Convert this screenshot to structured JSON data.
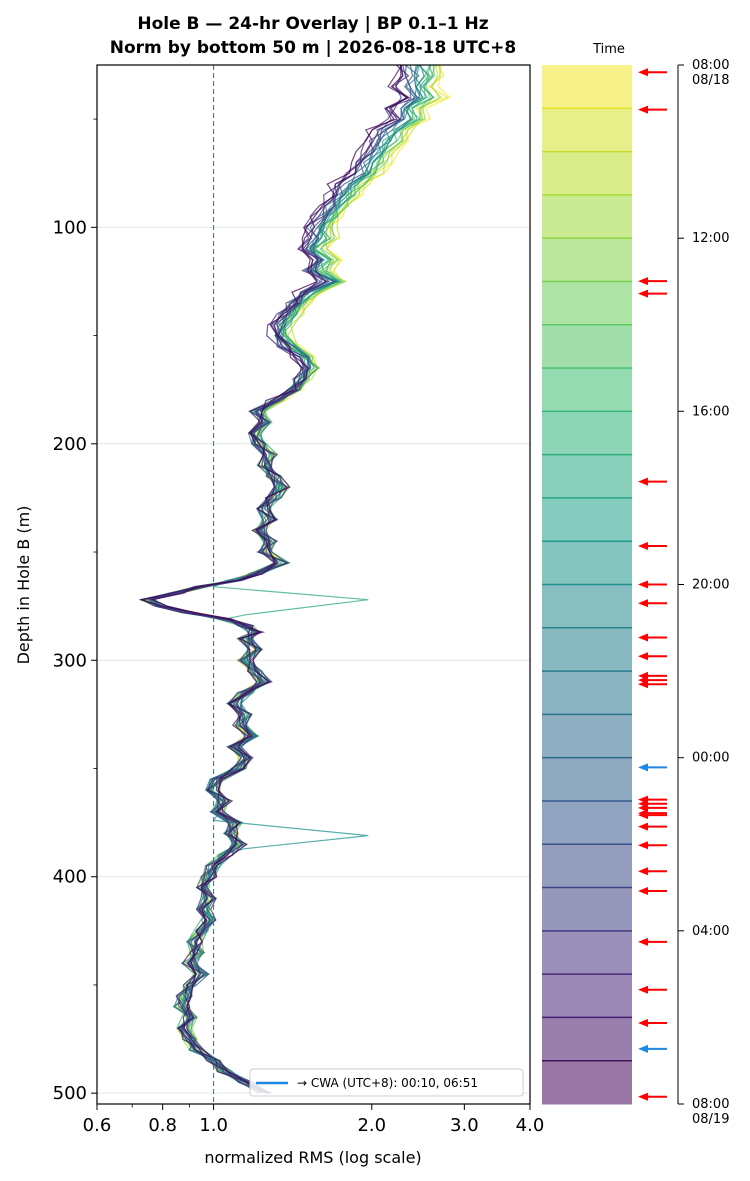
{
  "chart_data": {
    "type": "line",
    "title_line1": "Hole B — 24-hr Overlay  |  BP 0.1–1 Hz",
    "title_line2": "Norm by bottom 50 m  |  2026-08-18 UTC+8",
    "xlabel": "normalized RMS  (log scale)",
    "ylabel": "Depth in Hole B (m)",
    "x_scale": "log",
    "xlim": [
      0.6,
      4.0
    ],
    "ylim": [
      505,
      25
    ],
    "x_ticks": [
      {
        "value": 0.6,
        "label": "0.6"
      },
      {
        "value": 0.8,
        "label": "0.8"
      },
      {
        "value": 1.0,
        "label": "1.0"
      },
      {
        "value": 2.0,
        "label": "2.0"
      },
      {
        "value": 3.0,
        "label": "3.0"
      },
      {
        "value": 4.0,
        "label": "4.0"
      }
    ],
    "y_ticks": [
      {
        "value": 100,
        "label": "100"
      },
      {
        "value": 200,
        "label": "200"
      },
      {
        "value": 300,
        "label": "300"
      },
      {
        "value": 400,
        "label": "400"
      },
      {
        "value": 500,
        "label": "500"
      }
    ],
    "reference_line_x": 1.0,
    "grid": "horizontal",
    "legend": {
      "placement": "lower-right",
      "label": "→ CWA (UTC+8): 00:10, 06:51",
      "color": "#1e88e5"
    },
    "series_count": 24,
    "colormap": "viridis",
    "base_profile": {
      "depth": [
        25,
        30,
        35,
        40,
        45,
        50,
        55,
        60,
        65,
        70,
        75,
        80,
        85,
        90,
        95,
        100,
        105,
        110,
        115,
        120,
        125,
        130,
        135,
        140,
        145,
        150,
        155,
        160,
        165,
        170,
        175,
        180,
        185,
        190,
        195,
        200,
        205,
        210,
        215,
        220,
        225,
        230,
        235,
        240,
        245,
        250,
        255,
        260,
        263,
        266,
        269,
        272,
        275,
        278,
        281,
        284,
        287,
        290,
        295,
        300,
        305,
        310,
        315,
        320,
        325,
        330,
        335,
        340,
        345,
        350,
        355,
        360,
        365,
        370,
        375,
        380,
        385,
        390,
        395,
        400,
        405,
        410,
        415,
        420,
        425,
        430,
        435,
        440,
        445,
        450,
        455,
        460,
        465,
        470,
        475,
        480,
        485,
        490,
        495,
        500
      ],
      "rms": [
        2.2,
        2.25,
        2.2,
        2.28,
        2.1,
        2.15,
        2.0,
        1.95,
        1.9,
        1.85,
        1.8,
        1.7,
        1.65,
        1.6,
        1.55,
        1.5,
        1.52,
        1.45,
        1.55,
        1.5,
        1.6,
        1.45,
        1.4,
        1.35,
        1.3,
        1.3,
        1.35,
        1.45,
        1.5,
        1.45,
        1.4,
        1.3,
        1.2,
        1.25,
        1.2,
        1.22,
        1.28,
        1.25,
        1.3,
        1.35,
        1.3,
        1.25,
        1.28,
        1.22,
        1.28,
        1.25,
        1.35,
        1.2,
        1.1,
        0.95,
        0.85,
        0.75,
        0.8,
        0.9,
        1.05,
        1.15,
        1.2,
        1.15,
        1.2,
        1.15,
        1.2,
        1.25,
        1.15,
        1.1,
        1.15,
        1.12,
        1.18,
        1.1,
        1.15,
        1.12,
        1.02,
        1.0,
        1.05,
        1.02,
        1.1,
        1.08,
        1.12,
        1.05,
        1.0,
        0.98,
        0.95,
        0.98,
        0.96,
        0.98,
        0.95,
        0.92,
        0.93,
        0.9,
        0.95,
        0.9,
        0.88,
        0.87,
        0.9,
        0.88,
        0.9,
        0.93,
        1.0,
        1.05,
        1.15,
        1.25
      ]
    },
    "spikes": [
      {
        "depth_min": 266,
        "depth_peak": 272,
        "depth_max": 279,
        "rms": 1.97
      },
      {
        "depth_min": 374,
        "depth_peak": 381,
        "depth_max": 387,
        "rms": 1.97
      }
    ],
    "colorbar": {
      "label": "Time",
      "tick_labels": [
        {
          "frac": 0.0,
          "line1": "08:00",
          "line2": "08/18"
        },
        {
          "frac": 0.1667,
          "line1": "12:00",
          "line2": ""
        },
        {
          "frac": 0.3333,
          "line1": "16:00",
          "line2": ""
        },
        {
          "frac": 0.5,
          "line1": "20:00",
          "line2": ""
        },
        {
          "frac": 0.6667,
          "line1": "00:00",
          "line2": ""
        },
        {
          "frac": 0.8333,
          "line1": "04:00",
          "line2": ""
        },
        {
          "frac": 1.0,
          "line1": "08:00",
          "line2": "08/19"
        }
      ],
      "segments": 24,
      "red_event_fracs": [
        0.007,
        0.043,
        0.208,
        0.22,
        0.401,
        0.463,
        0.5,
        0.518,
        0.551,
        0.569,
        0.588,
        0.592,
        0.596,
        0.707,
        0.711,
        0.715,
        0.72,
        0.722,
        0.733,
        0.751,
        0.776,
        0.795,
        0.844,
        0.89,
        0.922,
        0.993
      ],
      "blue_event_fracs": [
        0.676,
        0.947
      ]
    }
  }
}
